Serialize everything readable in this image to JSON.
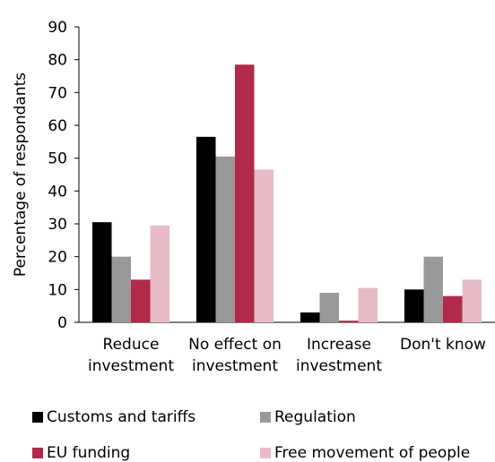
{
  "chart_data": {
    "type": "bar",
    "ylabel": "Percentage of respondants",
    "ylim": [
      0,
      90
    ],
    "yticks": [
      0,
      10,
      20,
      30,
      40,
      50,
      60,
      70,
      80,
      90
    ],
    "grid": false,
    "legend_position": "bottom",
    "categories": [
      [
        "Reduce",
        "investment"
      ],
      [
        "No effect on",
        "investment"
      ],
      [
        "Increase",
        "investment"
      ],
      [
        "Don't know",
        ""
      ]
    ],
    "series": [
      {
        "name": "Customs and tariffs",
        "color": "#000000",
        "values": [
          30.5,
          56.5,
          3,
          10
        ]
      },
      {
        "name": "Regulation",
        "color": "#999999",
        "values": [
          20,
          50.5,
          9,
          20
        ]
      },
      {
        "name": "EU funding",
        "color": "#b22a4a",
        "values": [
          13,
          78.5,
          0.5,
          8
        ]
      },
      {
        "name": "Free movement of people",
        "color": "#e8bcc6",
        "values": [
          29.5,
          46.5,
          10.5,
          13
        ]
      }
    ]
  }
}
